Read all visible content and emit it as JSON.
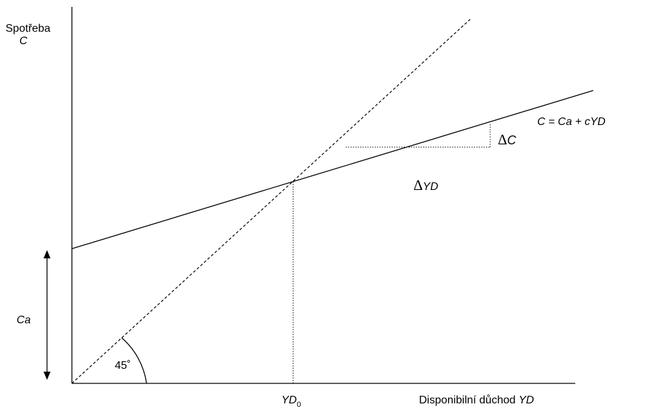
{
  "y_axis": {
    "label_line1": "Spotřeba",
    "label_line2": "C"
  },
  "x_axis": {
    "label_prefix": "Disponibilní důchod ",
    "label_var": "YD"
  },
  "consumption_function": {
    "label": "C = Ca + cYD"
  },
  "autonomous_consumption": {
    "label": "Ca"
  },
  "angle": {
    "label": "45˚"
  },
  "equilibrium": {
    "label": "YD",
    "subscript": "0"
  },
  "slope_triangle": {
    "delta_symbol": "Δ",
    "vertical_label": "C",
    "horizontal_label": "YD"
  },
  "colors": {
    "ink": "#000000"
  }
}
